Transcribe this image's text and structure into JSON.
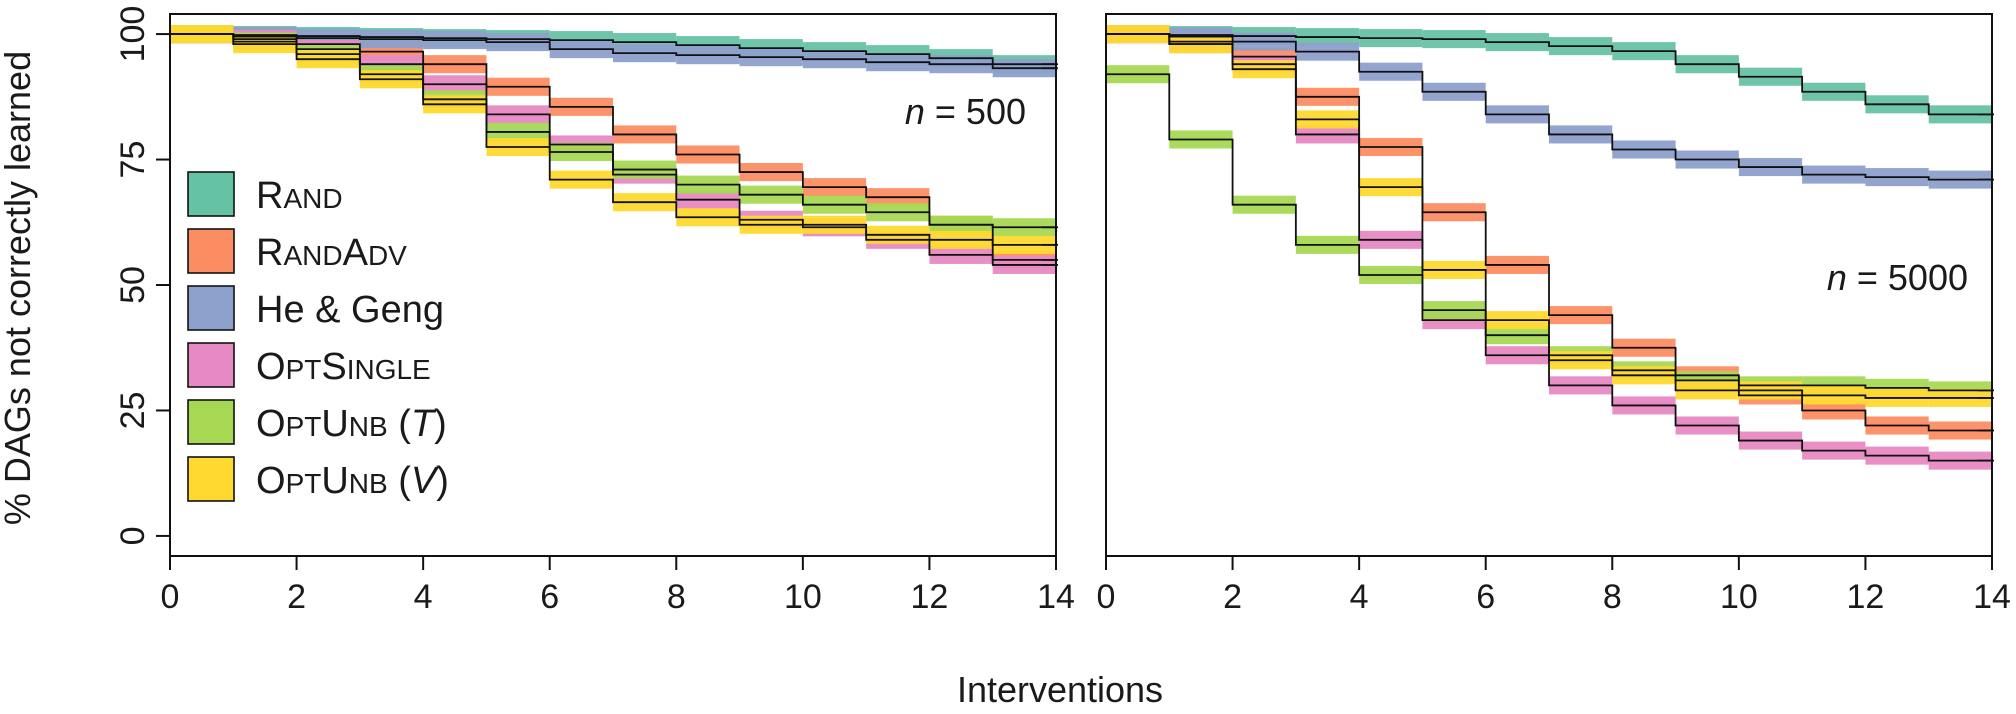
{
  "figure": {
    "xlabel": "Interventions",
    "ylabel": "% DAGs not correctly learned"
  },
  "chart_data": [
    {
      "type": "line",
      "panel": "left",
      "annotation": {
        "var": "n",
        "eq": " = ",
        "value": "500"
      },
      "xlim": [
        0,
        14
      ],
      "ylim": [
        -4,
        104
      ],
      "x_ticks": [
        "0",
        "2",
        "4",
        "6",
        "8",
        "10",
        "12",
        "14"
      ],
      "y_ticks": [
        "0",
        "25",
        "50",
        "75",
        "100"
      ],
      "x": [
        0,
        1,
        2,
        3,
        4,
        5,
        6,
        7,
        8,
        9,
        10,
        11,
        12,
        13,
        14
      ],
      "band_halfwidth": 1.8,
      "series": [
        {
          "name": "RAND",
          "color": "#66c2a5",
          "values": [
            100,
            100,
            99.8,
            99.6,
            99.4,
            99.2,
            99,
            98.8,
            98.4,
            97.8,
            97.2,
            96.6,
            96,
            95.2,
            94
          ]
        },
        {
          "name": "RANDADV",
          "color": "#fc8d62",
          "values": [
            100,
            100,
            99.5,
            98,
            96.5,
            94,
            89.5,
            85.5,
            80,
            76,
            72.5,
            69.5,
            67.5,
            62,
            55
          ]
        },
        {
          "name": "He & Geng",
          "color": "#8da0cb",
          "values": [
            100,
            100,
            99.6,
            99.2,
            99,
            98.8,
            98.4,
            97,
            96.2,
            95.8,
            95.4,
            95,
            94.4,
            94,
            93.2
          ]
        },
        {
          "name": "OPTSINGLE",
          "color": "#e78ac3",
          "values": [
            100,
            100,
            99,
            97,
            94,
            90,
            84,
            78,
            72,
            67,
            63,
            61.5,
            59,
            56,
            54
          ]
        },
        {
          "name": "OPTUNB (T)",
          "color": "#a6d854",
          "values": [
            100,
            100,
            98.5,
            96,
            92,
            87,
            80.5,
            76.5,
            73,
            70,
            68,
            66,
            64.5,
            62,
            61.5
          ]
        },
        {
          "name": "OPTUNB (V)",
          "color": "#ffd92f",
          "values": [
            100,
            100,
            98,
            95,
            91,
            86,
            77.5,
            71,
            66.5,
            63.5,
            62,
            62,
            60,
            59,
            58
          ]
        }
      ]
    },
    {
      "type": "line",
      "panel": "right",
      "annotation": {
        "var": "n",
        "eq": " = ",
        "value": "5000"
      },
      "xlim": [
        0,
        14
      ],
      "ylim": [
        -4,
        104
      ],
      "x_ticks": [
        "0",
        "2",
        "4",
        "6",
        "8",
        "10",
        "12",
        "14"
      ],
      "y_ticks": [],
      "x": [
        0,
        1,
        2,
        3,
        4,
        5,
        6,
        7,
        8,
        9,
        10,
        11,
        12,
        13,
        14
      ],
      "band_halfwidth": 1.8,
      "series": [
        {
          "name": "RAND",
          "color": "#66c2a5",
          "values": [
            100,
            100,
            99.8,
            99.6,
            99.4,
            99.2,
            99,
            98.4,
            97.6,
            96.6,
            94,
            91.5,
            88.5,
            86,
            84
          ]
        },
        {
          "name": "RANDADV",
          "color": "#fc8d62",
          "values": [
            100,
            100,
            98.5,
            95.5,
            87.5,
            77.5,
            64.5,
            54,
            44,
            37.5,
            32,
            28,
            25,
            22,
            21
          ]
        },
        {
          "name": "He & Geng",
          "color": "#8da0cb",
          "values": [
            100,
            100,
            99.5,
            98.5,
            96.5,
            92.5,
            88.5,
            84,
            80,
            77,
            75,
            73.5,
            72,
            71.5,
            71
          ]
        },
        {
          "name": "OPTSINGLE",
          "color": "#e78ac3",
          "values": [
            100,
            100,
            98,
            94,
            80,
            59,
            43,
            36,
            30,
            26,
            22,
            19,
            17,
            16,
            15
          ]
        },
        {
          "name": "OPTUNB (T)",
          "color": "#a6d854",
          "values": [
            100,
            92,
            79,
            66,
            58,
            52,
            45,
            40,
            36,
            33,
            31,
            30,
            30,
            29.5,
            29
          ]
        },
        {
          "name": "OPTUNB (V)",
          "color": "#ffd92f",
          "values": [
            100,
            100,
            98,
            93,
            83,
            69.5,
            53,
            43,
            35,
            32,
            29,
            29,
            28,
            27.5,
            27.5
          ]
        }
      ]
    }
  ],
  "legend": {
    "placement": "left panel, lower-left",
    "items": [
      {
        "color": "#66c2a5",
        "parts": [
          {
            "t": "R",
            "sc": false
          },
          {
            "t": "AND",
            "sc": true
          }
        ]
      },
      {
        "color": "#fc8d62",
        "parts": [
          {
            "t": "R",
            "sc": false
          },
          {
            "t": "AND",
            "sc": true
          },
          {
            "t": "A",
            "sc": false
          },
          {
            "t": "DV",
            "sc": true
          }
        ]
      },
      {
        "color": "#8da0cb",
        "parts": [
          {
            "t": "He & Geng",
            "sc": false
          }
        ]
      },
      {
        "color": "#e78ac3",
        "parts": [
          {
            "t": "O",
            "sc": false
          },
          {
            "t": "PT",
            "sc": true
          },
          {
            "t": "S",
            "sc": false
          },
          {
            "t": "INGLE",
            "sc": true
          }
        ]
      },
      {
        "color": "#a6d854",
        "parts": [
          {
            "t": "O",
            "sc": false
          },
          {
            "t": "PT",
            "sc": true
          },
          {
            "t": "U",
            "sc": false
          },
          {
            "t": "NB",
            "sc": true
          },
          {
            "t": " (",
            "sc": false
          },
          {
            "t": "T",
            "sc": false,
            "it": true
          },
          {
            "t": ")",
            "sc": false
          }
        ]
      },
      {
        "color": "#ffd92f",
        "parts": [
          {
            "t": "O",
            "sc": false
          },
          {
            "t": "PT",
            "sc": true
          },
          {
            "t": "U",
            "sc": false
          },
          {
            "t": "NB",
            "sc": true
          },
          {
            "t": " (",
            "sc": false
          },
          {
            "t": "V",
            "sc": false,
            "it": true
          },
          {
            "t": ")",
            "sc": false
          }
        ]
      }
    ]
  }
}
